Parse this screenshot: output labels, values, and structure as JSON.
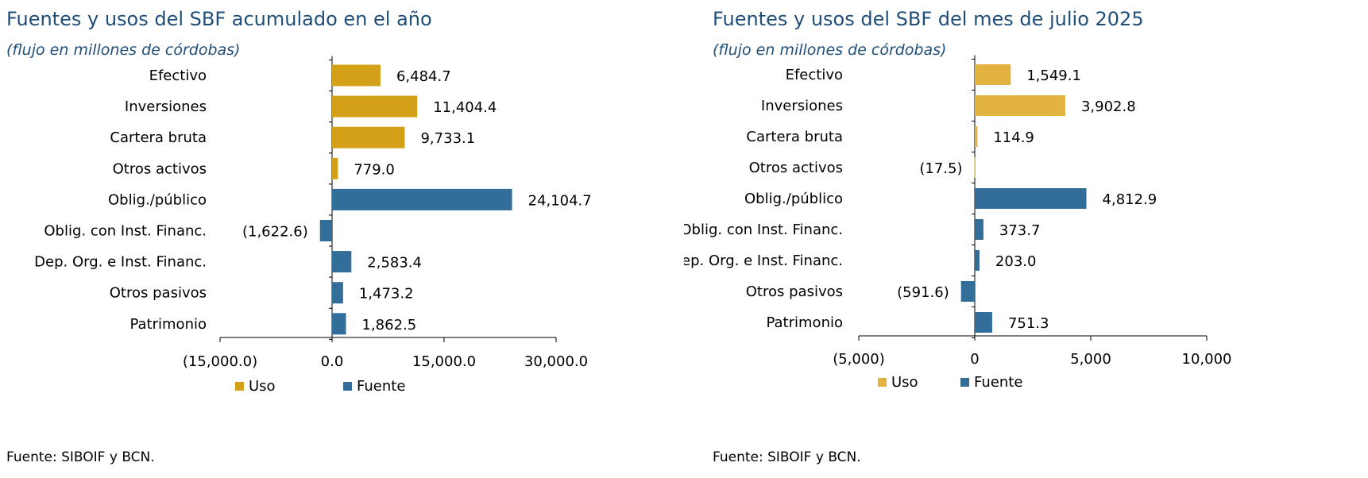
{
  "charts": [
    {
      "title": "Fuentes y usos del SBF acumulado en el año",
      "subtitle": "(flujo en millones de córdobas)",
      "source": "Fuente: SIBOIF y BCN."
    },
    {
      "title": "Fuentes y usos del SBF del mes de julio 2025",
      "subtitle": "(flujo en millones de córdobas)",
      "source": "Fuente: SIBOIF y BCN."
    }
  ],
  "chart_data": [
    {
      "type": "bar",
      "orientation": "horizontal",
      "title": "Fuentes y usos del SBF acumulado en el año",
      "subtitle": "(flujo en millones de córdobas)",
      "categories": [
        "Efectivo",
        "Inversiones",
        "Cartera bruta",
        "Otros activos",
        "Oblig./público",
        "Oblig. con Inst. Financ.",
        "Dep. Org. e Inst. Financ.",
        "Otros pasivos",
        "Patrimonio"
      ],
      "values": [
        6484.7,
        11404.4,
        9733.1,
        779.0,
        24104.7,
        -1622.6,
        2583.4,
        1473.2,
        1862.5
      ],
      "value_labels": [
        "6,484.7",
        "11,404.4",
        "9,733.1",
        "779.0",
        "24,104.7",
        "(1,622.6)",
        "2,583.4",
        "1,473.2",
        "1,862.5"
      ],
      "groups": [
        "Uso",
        "Uso",
        "Uso",
        "Uso",
        "Fuente",
        "Fuente",
        "Fuente",
        "Fuente",
        "Fuente"
      ],
      "xlim": [
        -15000,
        30000
      ],
      "xticks": [
        -15000,
        0,
        15000,
        30000
      ],
      "xtick_labels": [
        "(15,000.0)",
        "0.0",
        "15,000.0",
        "30,000.0"
      ],
      "legend": [
        {
          "name": "Uso",
          "color": "#D4A017"
        },
        {
          "name": "Fuente",
          "color": "#336E9B"
        }
      ],
      "legend_position": "bottom",
      "grid": false
    },
    {
      "type": "bar",
      "orientation": "horizontal",
      "title": "Fuentes y usos del SBF del mes de julio 2025",
      "subtitle": "(flujo en millones de córdobas)",
      "categories": [
        "Efectivo",
        "Inversiones",
        "Cartera bruta",
        "Otros activos",
        "Oblig./público",
        "Oblig. con Inst. Financ.",
        "Dep. Org. e Inst. Financ.",
        "Otros pasivos",
        "Patrimonio"
      ],
      "values": [
        1549.1,
        3902.8,
        114.9,
        -17.5,
        4812.9,
        373.7,
        203.0,
        -591.6,
        751.3
      ],
      "value_labels": [
        "1,549.1",
        "3,902.8",
        "114.9",
        "(17.5)",
        "4,812.9",
        "373.7",
        "203.0",
        "(591.6)",
        "751.3"
      ],
      "groups": [
        "Uso",
        "Uso",
        "Uso",
        "Uso",
        "Fuente",
        "Fuente",
        "Fuente",
        "Fuente",
        "Fuente"
      ],
      "xlim": [
        -5000,
        10000
      ],
      "xticks": [
        -5000,
        0,
        5000,
        10000
      ],
      "xtick_labels": [
        "(5,000)",
        "0",
        "5,000",
        "10,000"
      ],
      "legend": [
        {
          "name": "Uso",
          "color": "#E3B341"
        },
        {
          "name": "Fuente",
          "color": "#336E9B"
        }
      ],
      "legend_position": "bottom",
      "grid": false
    }
  ]
}
